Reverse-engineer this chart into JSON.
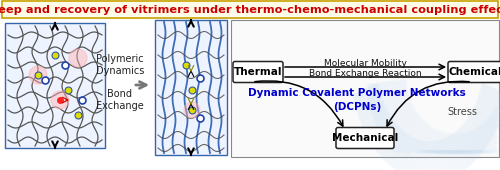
{
  "title": "Creep and recovery of vitrimers under thermo-chemo-mechanical coupling effects",
  "title_color": "#CC0000",
  "title_bg": "#FFFDE8",
  "title_border": "#C8A000",
  "bg_color": "#FFFFFF",
  "node_thermal": "Thermal",
  "node_chemical": "Chemical",
  "node_mechanical": "Mechanical",
  "label_mol_mobility": "Molecular Mobility",
  "label_bond_exchange": "Bond Exchange Reaction",
  "label_dcpn": "Dynamic Covalent Polymer Networks\n(DCPNs)",
  "label_stress": "Stress",
  "label_polymeric": "Polymeric\nDynamics",
  "label_bond_ex": "Bond\nExchange",
  "dcpn_color": "#0000CC",
  "node_color": "#FFFFFF",
  "node_border": "#222222",
  "stress_arc_color": "#AACCEE",
  "polymer_line_color": "#555555",
  "blue_line_color": "#2255AA",
  "mid_box_border": "#3366AA",
  "left_box_border": "#3366AA",
  "right_box_border": "#888888",
  "arrow_gray": "#777777"
}
